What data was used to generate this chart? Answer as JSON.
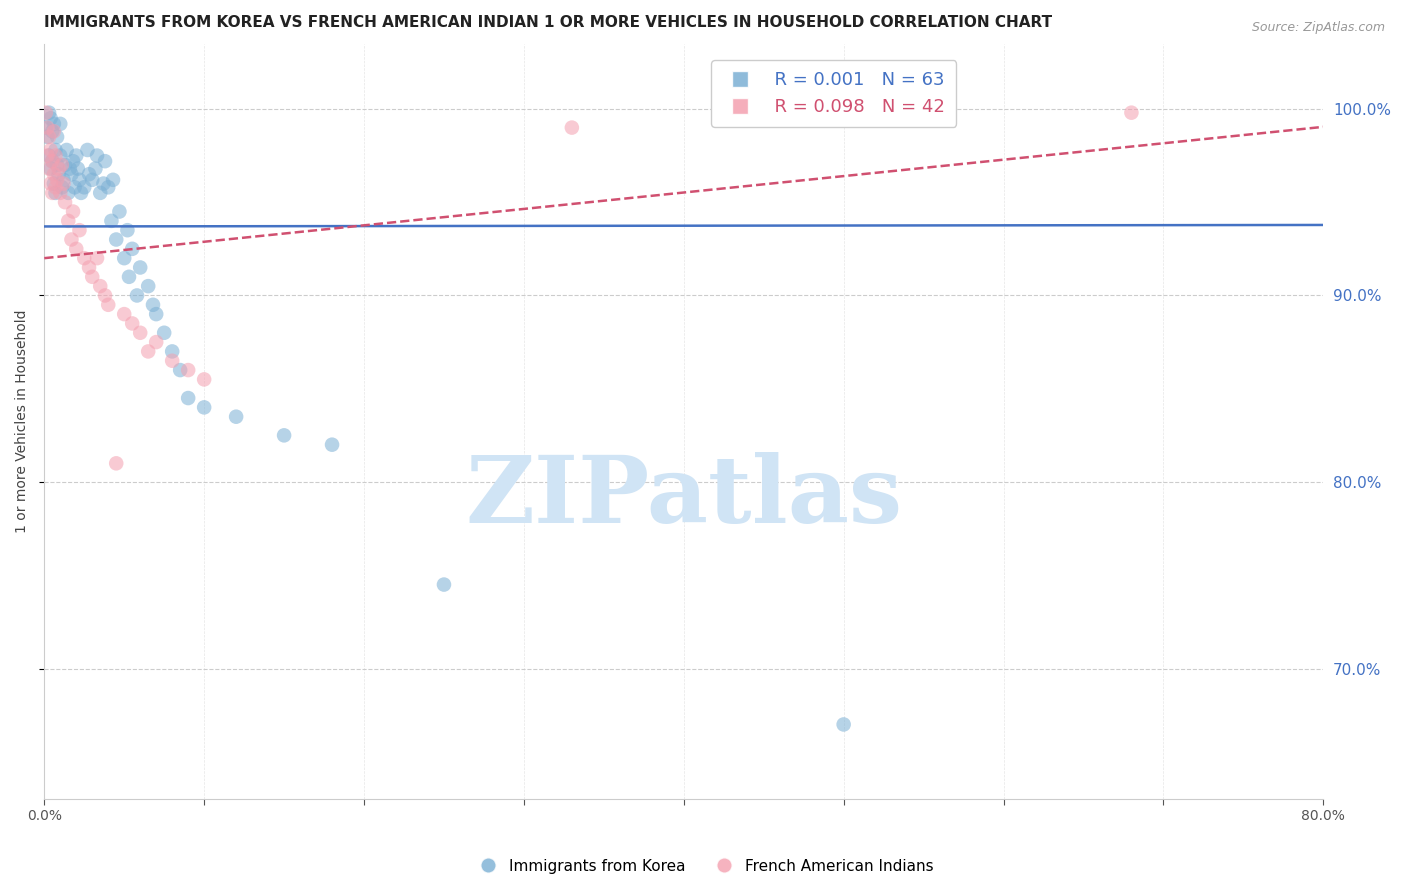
{
  "title": "IMMIGRANTS FROM KOREA VS FRENCH AMERICAN INDIAN 1 OR MORE VEHICLES IN HOUSEHOLD CORRELATION CHART",
  "source": "Source: ZipAtlas.com",
  "ylabel": "1 or more Vehicles in Household",
  "xlim": [
    0.0,
    0.8
  ],
  "ylim": [
    0.63,
    1.035
  ],
  "yticks": [
    0.7,
    0.8,
    0.9,
    1.0
  ],
  "xticks": [
    0.0,
    0.1,
    0.2,
    0.3,
    0.4,
    0.5,
    0.6,
    0.7,
    0.8
  ],
  "ytick_labels": [
    "70.0%",
    "80.0%",
    "90.0%",
    "100.0%"
  ],
  "legend_entries": [
    {
      "label": "Immigrants from Korea",
      "R": "0.001",
      "N": "63",
      "color": "#7bafd4"
    },
    {
      "label": "French American Indians",
      "R": "0.098",
      "N": "42",
      "color": "#f4a0b0"
    }
  ],
  "korea_x": [
    0.001,
    0.002,
    0.003,
    0.003,
    0.004,
    0.004,
    0.005,
    0.005,
    0.006,
    0.006,
    0.007,
    0.007,
    0.008,
    0.008,
    0.009,
    0.01,
    0.01,
    0.011,
    0.012,
    0.013,
    0.014,
    0.015,
    0.016,
    0.017,
    0.018,
    0.019,
    0.02,
    0.021,
    0.022,
    0.023,
    0.025,
    0.027,
    0.028,
    0.03,
    0.032,
    0.033,
    0.035,
    0.037,
    0.038,
    0.04,
    0.042,
    0.043,
    0.045,
    0.047,
    0.05,
    0.052,
    0.053,
    0.055,
    0.058,
    0.06,
    0.065,
    0.068,
    0.07,
    0.075,
    0.08,
    0.085,
    0.09,
    0.1,
    0.12,
    0.15,
    0.18,
    0.25,
    0.5
  ],
  "korea_y": [
    0.99,
    0.985,
    0.998,
    0.975,
    0.968,
    0.995,
    0.972,
    0.988,
    0.96,
    0.992,
    0.955,
    0.978,
    0.97,
    0.985,
    0.965,
    0.975,
    0.992,
    0.958,
    0.962,
    0.97,
    0.978,
    0.955,
    0.968,
    0.965,
    0.972,
    0.958,
    0.975,
    0.968,
    0.962,
    0.955,
    0.958,
    0.978,
    0.965,
    0.962,
    0.968,
    0.975,
    0.955,
    0.96,
    0.972,
    0.958,
    0.94,
    0.962,
    0.93,
    0.945,
    0.92,
    0.935,
    0.91,
    0.925,
    0.9,
    0.915,
    0.905,
    0.895,
    0.89,
    0.88,
    0.87,
    0.86,
    0.845,
    0.84,
    0.835,
    0.825,
    0.82,
    0.745,
    0.67
  ],
  "french_x": [
    0.001,
    0.002,
    0.002,
    0.003,
    0.003,
    0.004,
    0.004,
    0.005,
    0.005,
    0.006,
    0.006,
    0.007,
    0.007,
    0.008,
    0.009,
    0.01,
    0.011,
    0.012,
    0.013,
    0.015,
    0.017,
    0.018,
    0.02,
    0.022,
    0.025,
    0.028,
    0.03,
    0.033,
    0.035,
    0.038,
    0.04,
    0.045,
    0.05,
    0.055,
    0.06,
    0.065,
    0.07,
    0.08,
    0.09,
    0.1,
    0.33,
    0.68
  ],
  "french_y": [
    0.998,
    0.99,
    0.975,
    0.968,
    0.985,
    0.96,
    0.978,
    0.955,
    0.972,
    0.965,
    0.988,
    0.958,
    0.975,
    0.962,
    0.968,
    0.955,
    0.97,
    0.96,
    0.95,
    0.94,
    0.93,
    0.945,
    0.925,
    0.935,
    0.92,
    0.915,
    0.91,
    0.92,
    0.905,
    0.9,
    0.895,
    0.81,
    0.89,
    0.885,
    0.88,
    0.87,
    0.875,
    0.865,
    0.86,
    0.855,
    0.99,
    0.998
  ],
  "dot_size": 110,
  "dot_alpha": 0.55,
  "korea_color": "#7bafd4",
  "french_color": "#f4a0b0",
  "trend_korea_color": "#4472c4",
  "trend_french_color": "#d05070",
  "trend_french_style": "--",
  "trend_korea_style": "-",
  "watermark_text": "ZIPatlas",
  "watermark_color": "#d0e4f5",
  "background_color": "#ffffff",
  "grid_color": "#cccccc",
  "title_fontsize": 11,
  "axis_label_fontsize": 10,
  "tick_fontsize": 10,
  "right_tick_color": "#4472c4",
  "korea_trend_slope": 0.001,
  "korea_trend_intercept": 0.937,
  "french_trend_slope": 0.088,
  "french_trend_intercept": 0.92
}
